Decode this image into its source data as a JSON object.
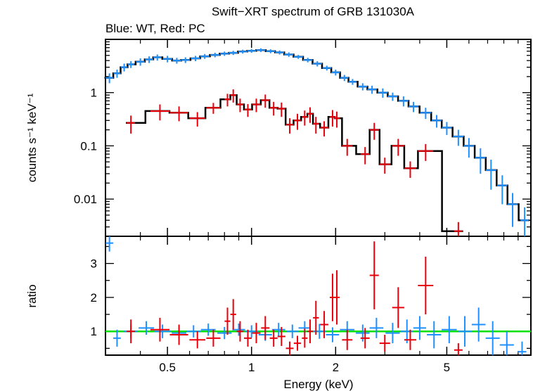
{
  "chart_data": {
    "type": "scatter",
    "title": "Swift−XRT spectrum of GRB 131030A",
    "subtitle": "Blue: WT, Red: PC",
    "xlabel": "Energy (keV)",
    "x_scale": "log",
    "xlim": [
      0.3,
      10
    ],
    "x_ticks": [
      "0.5",
      "1",
      "2",
      "5"
    ],
    "top_panel": {
      "ylabel": "counts s⁻¹ keV⁻¹",
      "y_scale": "log",
      "ylim": [
        0.002,
        10
      ],
      "y_ticks": [
        "0.01",
        "0.1",
        "1"
      ],
      "series": [
        {
          "color": "#1e90ff",
          "points": [
            {
              "x": 0.31,
              "y": 1.9,
              "yerr": 0.4
            },
            {
              "x": 0.33,
              "y": 2.3,
              "yerr": 0.4
            },
            {
              "x": 0.35,
              "y": 3.0,
              "yerr": 0.5
            },
            {
              "x": 0.37,
              "y": 3.4,
              "yerr": 0.5
            },
            {
              "x": 0.4,
              "y": 3.8,
              "yerr": 0.6
            },
            {
              "x": 0.43,
              "y": 4.2,
              "yerr": 0.6
            },
            {
              "x": 0.46,
              "y": 4.6,
              "yerr": 0.6
            },
            {
              "x": 0.5,
              "y": 4.3,
              "yerr": 0.6
            },
            {
              "x": 0.54,
              "y": 4.0,
              "yerr": 0.5
            },
            {
              "x": 0.58,
              "y": 4.1,
              "yerr": 0.5
            },
            {
              "x": 0.63,
              "y": 4.4,
              "yerr": 0.5
            },
            {
              "x": 0.68,
              "y": 4.8,
              "yerr": 0.5
            },
            {
              "x": 0.74,
              "y": 5.1,
              "yerr": 0.5
            },
            {
              "x": 0.8,
              "y": 5.4,
              "yerr": 0.5
            },
            {
              "x": 0.86,
              "y": 5.6,
              "yerr": 0.5
            },
            {
              "x": 0.93,
              "y": 5.9,
              "yerr": 0.5
            },
            {
              "x": 1.0,
              "y": 6.1,
              "yerr": 0.5
            },
            {
              "x": 1.08,
              "y": 6.3,
              "yerr": 0.5
            },
            {
              "x": 1.17,
              "y": 6.0,
              "yerr": 0.5
            },
            {
              "x": 1.26,
              "y": 5.7,
              "yerr": 0.5
            },
            {
              "x": 1.36,
              "y": 5.2,
              "yerr": 0.5
            },
            {
              "x": 1.47,
              "y": 4.7,
              "yerr": 0.4
            },
            {
              "x": 1.59,
              "y": 4.1,
              "yerr": 0.4
            },
            {
              "x": 1.72,
              "y": 3.5,
              "yerr": 0.4
            },
            {
              "x": 1.86,
              "y": 2.9,
              "yerr": 0.3
            },
            {
              "x": 2.0,
              "y": 2.4,
              "yerr": 0.3
            },
            {
              "x": 2.15,
              "y": 1.9,
              "yerr": 0.25
            },
            {
              "x": 2.3,
              "y": 1.6,
              "yerr": 0.2
            },
            {
              "x": 2.5,
              "y": 1.3,
              "yerr": 0.2
            },
            {
              "x": 2.7,
              "y": 1.15,
              "yerr": 0.2
            },
            {
              "x": 2.95,
              "y": 1.0,
              "yerr": 0.2
            },
            {
              "x": 3.2,
              "y": 0.85,
              "yerr": 0.15
            },
            {
              "x": 3.5,
              "y": 0.7,
              "yerr": 0.15
            },
            {
              "x": 3.8,
              "y": 0.55,
              "yerr": 0.12
            },
            {
              "x": 4.2,
              "y": 0.42,
              "yerr": 0.1
            },
            {
              "x": 4.6,
              "y": 0.3,
              "yerr": 0.08
            },
            {
              "x": 5.0,
              "y": 0.22,
              "yerr": 0.06
            },
            {
              "x": 5.5,
              "y": 0.15,
              "yerr": 0.05
            },
            {
              "x": 6.0,
              "y": 0.1,
              "yerr": 0.04
            },
            {
              "x": 6.6,
              "y": 0.06,
              "yerr": 0.03
            },
            {
              "x": 7.2,
              "y": 0.035,
              "yerr": 0.02
            },
            {
              "x": 7.9,
              "y": 0.018,
              "yerr": 0.01
            },
            {
              "x": 8.6,
              "y": 0.008,
              "yerr": 0.005
            },
            {
              "x": 9.5,
              "y": 0.004,
              "yerr": 0.003
            }
          ]
        },
        {
          "color": "#e8000b",
          "points": [
            {
              "x": 0.37,
              "y": 0.27,
              "yerr": 0.1
            },
            {
              "x": 0.47,
              "y": 0.45,
              "yerr": 0.15
            },
            {
              "x": 0.55,
              "y": 0.42,
              "yerr": 0.13
            },
            {
              "x": 0.64,
              "y": 0.33,
              "yerr": 0.1
            },
            {
              "x": 0.73,
              "y": 0.52,
              "yerr": 0.12
            },
            {
              "x": 0.82,
              "y": 0.75,
              "yerr": 0.2
            },
            {
              "x": 0.86,
              "y": 0.9,
              "yerr": 0.25
            },
            {
              "x": 0.91,
              "y": 0.6,
              "yerr": 0.17
            },
            {
              "x": 0.97,
              "y": 0.48,
              "yerr": 0.13
            },
            {
              "x": 1.04,
              "y": 0.6,
              "yerr": 0.17
            },
            {
              "x": 1.12,
              "y": 0.72,
              "yerr": 0.2
            },
            {
              "x": 1.2,
              "y": 0.52,
              "yerr": 0.15
            },
            {
              "x": 1.28,
              "y": 0.5,
              "yerr": 0.15
            },
            {
              "x": 1.37,
              "y": 0.25,
              "yerr": 0.08
            },
            {
              "x": 1.46,
              "y": 0.3,
              "yerr": 0.1
            },
            {
              "x": 1.55,
              "y": 0.35,
              "yerr": 0.11
            },
            {
              "x": 1.62,
              "y": 0.4,
              "yerr": 0.13
            },
            {
              "x": 1.7,
              "y": 0.26,
              "yerr": 0.09
            },
            {
              "x": 1.82,
              "y": 0.22,
              "yerr": 0.07
            },
            {
              "x": 1.95,
              "y": 0.35,
              "yerr": 0.12
            },
            {
              "x": 2.02,
              "y": 0.33,
              "yerr": 0.11
            },
            {
              "x": 2.2,
              "y": 0.1,
              "yerr": 0.035
            },
            {
              "x": 2.55,
              "y": 0.07,
              "yerr": 0.025
            },
            {
              "x": 2.75,
              "y": 0.2,
              "yerr": 0.07
            },
            {
              "x": 3.0,
              "y": 0.045,
              "yerr": 0.015
            },
            {
              "x": 3.35,
              "y": 0.1,
              "yerr": 0.035
            },
            {
              "x": 3.7,
              "y": 0.038,
              "yerr": 0.013
            },
            {
              "x": 4.2,
              "y": 0.08,
              "yerr": 0.028
            },
            {
              "x": 5.5,
              "y": 0.0025,
              "yerr": 0.0012
            }
          ]
        }
      ]
    },
    "bottom_panel": {
      "ylabel": "ratio",
      "ylim": [
        0.3,
        3.8
      ],
      "y_ticks": [
        "1",
        "2",
        "3"
      ],
      "reference_line": {
        "y": 1,
        "color": "#00e000"
      },
      "series": [
        {
          "color": "#1e90ff",
          "points": [
            {
              "x": 0.31,
              "y": 3.6,
              "yerr": 0.25
            },
            {
              "x": 0.33,
              "y": 0.8,
              "yerr": 0.25
            },
            {
              "x": 0.37,
              "y": 1.0,
              "yerr": 0.2
            },
            {
              "x": 0.42,
              "y": 1.1,
              "yerr": 0.2
            },
            {
              "x": 0.48,
              "y": 1.0,
              "yerr": 0.2
            },
            {
              "x": 0.55,
              "y": 0.95,
              "yerr": 0.2
            },
            {
              "x": 0.62,
              "y": 1.0,
              "yerr": 0.18
            },
            {
              "x": 0.7,
              "y": 1.05,
              "yerr": 0.18
            },
            {
              "x": 0.8,
              "y": 0.95,
              "yerr": 0.18
            },
            {
              "x": 0.9,
              "y": 1.05,
              "yerr": 0.18
            },
            {
              "x": 1.0,
              "y": 1.0,
              "yerr": 0.18
            },
            {
              "x": 1.12,
              "y": 0.9,
              "yerr": 0.18
            },
            {
              "x": 1.25,
              "y": 1.05,
              "yerr": 0.2
            },
            {
              "x": 1.4,
              "y": 1.0,
              "yerr": 0.2
            },
            {
              "x": 1.55,
              "y": 1.1,
              "yerr": 0.2
            },
            {
              "x": 1.75,
              "y": 1.0,
              "yerr": 0.22
            },
            {
              "x": 1.95,
              "y": 0.9,
              "yerr": 0.22
            },
            {
              "x": 2.2,
              "y": 1.05,
              "yerr": 0.25
            },
            {
              "x": 2.5,
              "y": 0.95,
              "yerr": 0.25
            },
            {
              "x": 2.8,
              "y": 1.1,
              "yerr": 0.3
            },
            {
              "x": 3.2,
              "y": 0.95,
              "yerr": 0.3
            },
            {
              "x": 3.6,
              "y": 1.0,
              "yerr": 0.35
            },
            {
              "x": 4.0,
              "y": 1.1,
              "yerr": 0.35
            },
            {
              "x": 4.5,
              "y": 0.9,
              "yerr": 0.4
            },
            {
              "x": 5.1,
              "y": 1.05,
              "yerr": 0.4
            },
            {
              "x": 5.8,
              "y": 1.0,
              "yerr": 0.45
            },
            {
              "x": 6.5,
              "y": 1.2,
              "yerr": 0.5
            },
            {
              "x": 7.3,
              "y": 0.8,
              "yerr": 0.5
            },
            {
              "x": 8.2,
              "y": 0.6,
              "yerr": 0.4
            },
            {
              "x": 9.3,
              "y": 0.4,
              "yerr": 0.3
            }
          ]
        },
        {
          "color": "#e8000b",
          "points": [
            {
              "x": 0.37,
              "y": 1.0,
              "yerr": 0.35
            },
            {
              "x": 0.47,
              "y": 1.05,
              "yerr": 0.35
            },
            {
              "x": 0.55,
              "y": 0.9,
              "yerr": 0.3
            },
            {
              "x": 0.64,
              "y": 0.75,
              "yerr": 0.25
            },
            {
              "x": 0.73,
              "y": 0.8,
              "yerr": 0.25
            },
            {
              "x": 0.82,
              "y": 1.3,
              "yerr": 0.4
            },
            {
              "x": 0.86,
              "y": 1.5,
              "yerr": 0.45
            },
            {
              "x": 0.91,
              "y": 1.0,
              "yerr": 0.3
            },
            {
              "x": 0.97,
              "y": 0.8,
              "yerr": 0.25
            },
            {
              "x": 1.04,
              "y": 0.95,
              "yerr": 0.3
            },
            {
              "x": 1.12,
              "y": 1.1,
              "yerr": 0.35
            },
            {
              "x": 1.2,
              "y": 0.8,
              "yerr": 0.25
            },
            {
              "x": 1.28,
              "y": 0.85,
              "yerr": 0.28
            },
            {
              "x": 1.37,
              "y": 0.5,
              "yerr": 0.2
            },
            {
              "x": 1.46,
              "y": 0.65,
              "yerr": 0.22
            },
            {
              "x": 1.55,
              "y": 0.8,
              "yerr": 0.28
            },
            {
              "x": 1.62,
              "y": 1.0,
              "yerr": 0.35
            },
            {
              "x": 1.7,
              "y": 1.4,
              "yerr": 0.5
            },
            {
              "x": 1.82,
              "y": 1.2,
              "yerr": 0.4
            },
            {
              "x": 1.95,
              "y": 2.0,
              "yerr": 0.7
            },
            {
              "x": 2.02,
              "y": 2.0,
              "yerr": 0.8
            },
            {
              "x": 2.2,
              "y": 0.75,
              "yerr": 0.3
            },
            {
              "x": 2.55,
              "y": 0.8,
              "yerr": 0.3
            },
            {
              "x": 2.75,
              "y": 2.65,
              "yerr": 1.0
            },
            {
              "x": 3.0,
              "y": 0.65,
              "yerr": 0.25
            },
            {
              "x": 3.35,
              "y": 1.7,
              "yerr": 0.6
            },
            {
              "x": 3.7,
              "y": 0.75,
              "yerr": 0.3
            },
            {
              "x": 4.2,
              "y": 2.35,
              "yerr": 0.85
            },
            {
              "x": 5.5,
              "y": 0.45,
              "yerr": 0.2
            }
          ]
        }
      ]
    }
  }
}
